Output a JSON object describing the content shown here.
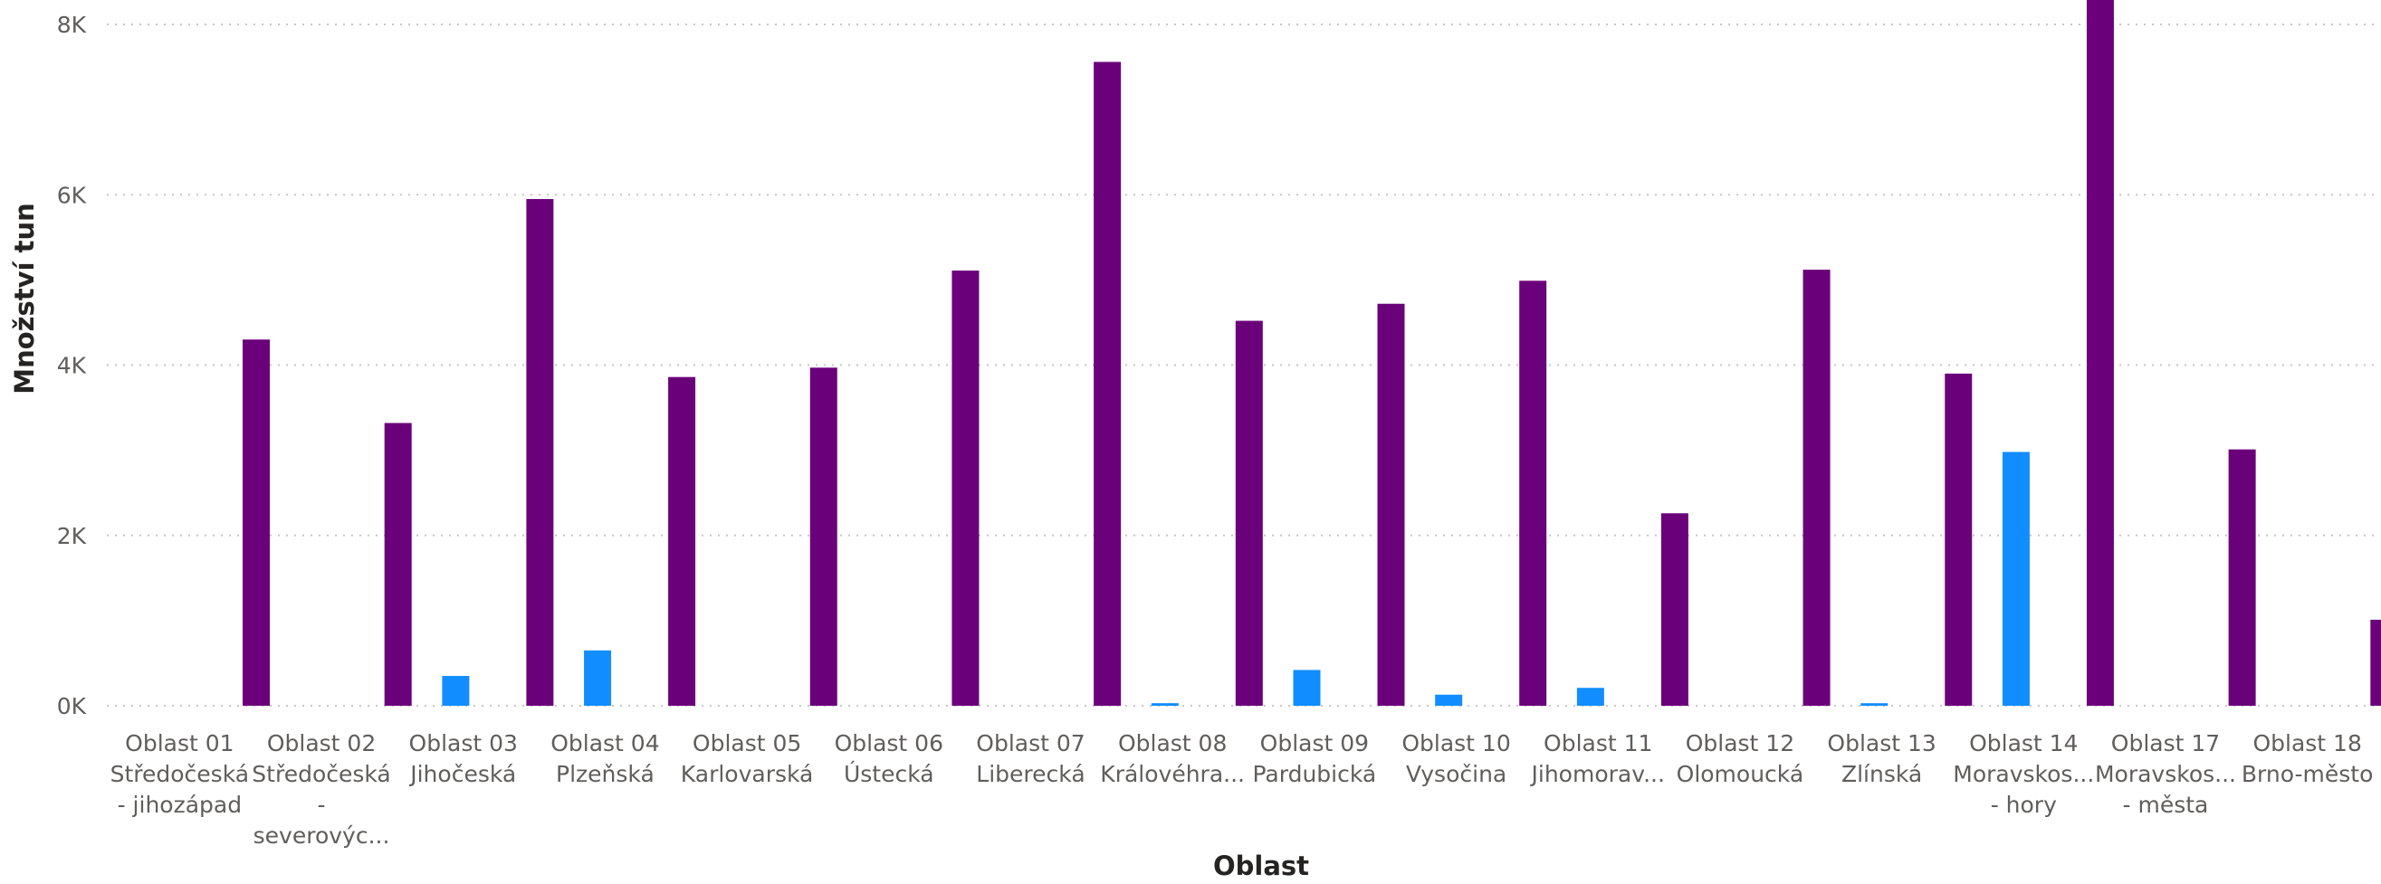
{
  "colors": {
    "series_1": "#118dff",
    "series_2": "#6b007b",
    "gridline": "#c8c6c4",
    "text": "#605e5c",
    "axis_title": "#252423"
  },
  "chart_data": {
    "type": "bar",
    "title": "",
    "xlabel": "Oblast",
    "ylabel": "Množství tun",
    "ylim": [
      0,
      8300
    ],
    "yticks": [
      0,
      2000,
      4000,
      6000,
      8000
    ],
    "ytick_labels": [
      "0K",
      "2K",
      "4K",
      "6K",
      "8K"
    ],
    "grid": true,
    "legend": "none",
    "categories": [
      [
        "Oblast 01",
        "Středočeská",
        "- jihozápad"
      ],
      [
        "Oblast 02",
        "Středočeská",
        "-",
        "severovýc..."
      ],
      [
        "Oblast 03",
        "Jihočeská"
      ],
      [
        "Oblast 04",
        "Plzeňská"
      ],
      [
        "Oblast 05",
        "Karlovarská"
      ],
      [
        "Oblast 06",
        "Ústecká"
      ],
      [
        "Oblast 07",
        "Liberecká"
      ],
      [
        "Oblast 08",
        "Královéhra..."
      ],
      [
        "Oblast 09",
        "Pardubická"
      ],
      [
        "Oblast 10",
        "Vysočina"
      ],
      [
        "Oblast 11",
        "Jihomorav..."
      ],
      [
        "Oblast 12",
        "Olomoucká"
      ],
      [
        "Oblast 13",
        "Zlínská"
      ],
      [
        "Oblast 14",
        "Moravskos...",
        "- hory"
      ],
      [
        "Oblast 17",
        "Moravskos...",
        "- města"
      ],
      [
        "Oblast 18",
        "Brno-město"
      ]
    ],
    "series": [
      {
        "values": [
          0,
          0,
          350,
          650,
          0,
          0,
          0,
          30,
          420,
          130,
          210,
          0,
          30,
          2980,
          0,
          0
        ],
        "color": "#118dff"
      },
      {
        "values": [
          4300,
          3320,
          5950,
          3860,
          3970,
          5110,
          7560,
          4520,
          4720,
          4990,
          2260,
          5120,
          3900,
          8300,
          3010,
          1010
        ],
        "color": "#6b007b"
      }
    ]
  }
}
